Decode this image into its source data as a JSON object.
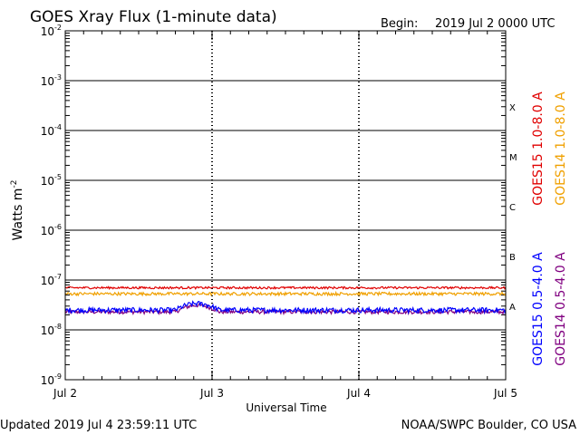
{
  "title": "GOES Xray Flux (1-minute data)",
  "begin_label": "Begin:",
  "begin_value": "2019 Jul 2 0000 UTC",
  "updated": "Updated 2019 Jul  4 23:59:11 UTC",
  "credit": "NOAA/SWPC Boulder, CO USA",
  "chart_data": {
    "type": "line",
    "y_scale": "log",
    "ylim": [
      1e-09,
      0.01
    ],
    "ylabel_base": "Watts m",
    "ylabel_exp": "-2",
    "xlabel": "Universal Time",
    "x_ticks": [
      "Jul 2",
      "Jul 3",
      "Jul 4",
      "Jul 5"
    ],
    "y_tick_exponents": [
      "-2",
      "-3",
      "-4",
      "-5",
      "-6",
      "-7",
      "-8",
      "-9"
    ],
    "flare_classes": [
      {
        "label": "X",
        "value": 0.0003
      },
      {
        "label": "M",
        "value": 3e-05
      },
      {
        "label": "C",
        "value": 3e-06
      },
      {
        "label": "B",
        "value": 3e-07
      },
      {
        "label": "A",
        "value": 3e-08
      }
    ],
    "grid": true,
    "series": [
      {
        "name": "GOES15 1.0-8.0 A",
        "color": "#e00000",
        "level": 7e-08,
        "noise": 0.05
      },
      {
        "name": "GOES14 1.0-8.0 A",
        "color": "#f0a000",
        "level": 5.3e-08,
        "noise": 0.07
      },
      {
        "name": "GOES15 0.5-4.0 A",
        "color": "#0000ff",
        "level": 2.5e-08,
        "noise": 0.12
      },
      {
        "name": "GOES14 0.5-4.0 A",
        "color": "#800080",
        "level": 2.3e-08,
        "noise": 0.09
      }
    ]
  }
}
